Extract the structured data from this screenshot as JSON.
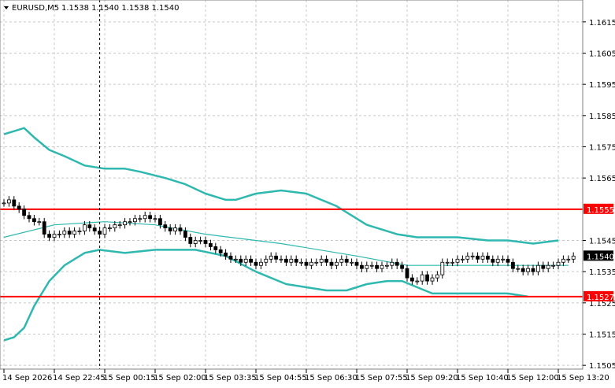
{
  "header": {
    "dropdown_icon": "triangle-down-icon",
    "symbol": "EURUSD,M5",
    "ohlc": "1.1538 1.1540 1.1538 1.1540"
  },
  "colors": {
    "grid": "#c8c8c8",
    "band": "#2fb8b0",
    "ma": "#2fb8b0",
    "candle": "#000000",
    "level": "#ff0000",
    "level_label_text": "#ffffff",
    "price_tag_bg": "#000000",
    "price_tag_text": "#ffffff",
    "crosshair": "#000000"
  },
  "chart_data": {
    "type": "candlestick",
    "symbol": "EURUSD",
    "timeframe": "M5",
    "ylim": [
      1.15,
      1.162
    ],
    "y_ticks": [
      "1.1615",
      "1.1605",
      "1.1595",
      "1.1585",
      "1.1575",
      "1.1565",
      "1.1545",
      "1.1535",
      "1.1525",
      "1.1515",
      "1.1505"
    ],
    "x_ticks": [
      "14 Sep 2026",
      "14 Sep 22:45",
      "15 Sep 00:15",
      "15 Sep 02:00",
      "15 Sep 03:35",
      "15 Sep 04:55",
      "15 Sep 06:30",
      "15 Sep 07:55",
      "15 Sep 09:20",
      "15 Sep 10:40",
      "15 Sep 12:00",
      "15 Sep 13:20"
    ],
    "x_tick_index": [
      0,
      10,
      20,
      30,
      40,
      50,
      60,
      70,
      80,
      90,
      100,
      110
    ],
    "levels": [
      {
        "price": 1.1555,
        "label": "1.1555"
      },
      {
        "price": 1.1527,
        "label": "1.1527"
      }
    ],
    "current_price": {
      "price": 1.154,
      "label": "1.1540"
    },
    "crosshair_index": 19,
    "closes": [
      1.1557,
      1.1558,
      1.1556,
      1.1555,
      1.1553,
      1.1552,
      1.1551,
      1.1551,
      1.1547,
      1.1546,
      1.1547,
      1.1547,
      1.1548,
      1.1547,
      1.1548,
      1.1548,
      1.155,
      1.1549,
      1.1548,
      1.1547,
      1.1549,
      1.1549,
      1.155,
      1.155,
      1.1551,
      1.1551,
      1.1552,
      1.1552,
      1.1553,
      1.1552,
      1.1552,
      1.155,
      1.1549,
      1.1548,
      1.1549,
      1.1548,
      1.1546,
      1.1544,
      1.1545,
      1.1545,
      1.1544,
      1.1543,
      1.1542,
      1.1541,
      1.154,
      1.1539,
      1.1539,
      1.1538,
      1.1539,
      1.1538,
      1.1537,
      1.1538,
      1.1539,
      1.154,
      1.1539,
      1.1539,
      1.1538,
      1.1539,
      1.1538,
      1.1538,
      1.1537,
      1.1538,
      1.1538,
      1.1539,
      1.1538,
      1.1537,
      1.1538,
      1.1539,
      1.1538,
      1.1538,
      1.1537,
      1.1536,
      1.1537,
      1.1537,
      1.1536,
      1.1537,
      1.1537,
      1.1538,
      1.1537,
      1.1536,
      1.1533,
      1.1532,
      1.1532,
      1.1534,
      1.1532,
      1.1533,
      1.1534,
      1.1538,
      1.1538,
      1.1538,
      1.1539,
      1.1539,
      1.154,
      1.154,
      1.1539,
      1.154,
      1.1539,
      1.1538,
      1.1539,
      1.1539,
      1.1538,
      1.1536,
      1.1536,
      1.1535,
      1.1536,
      1.1535,
      1.1537,
      1.1536,
      1.1537,
      1.1537,
      1.1538,
      1.1539,
      1.1539,
      1.154
    ],
    "ma": [
      [
        0,
        1.1546
      ],
      [
        10,
        1.155
      ],
      [
        20,
        1.1551
      ],
      [
        30,
        1.155
      ],
      [
        40,
        1.1547
      ],
      [
        55,
        1.1544
      ],
      [
        70,
        1.154
      ],
      [
        80,
        1.1537
      ],
      [
        90,
        1.1537
      ],
      [
        100,
        1.1537
      ],
      [
        112,
        1.1537
      ]
    ],
    "upper_band": [
      [
        0,
        1.1579
      ],
      [
        2,
        1.158
      ],
      [
        4,
        1.1581
      ],
      [
        6,
        1.1578
      ],
      [
        9,
        1.1574
      ],
      [
        12,
        1.1572
      ],
      [
        16,
        1.1569
      ],
      [
        20,
        1.1568
      ],
      [
        24,
        1.1568
      ],
      [
        27,
        1.1567
      ],
      [
        32,
        1.1565
      ],
      [
        36,
        1.1563
      ],
      [
        40,
        1.156
      ],
      [
        44,
        1.1558
      ],
      [
        46,
        1.1558
      ],
      [
        50,
        1.156
      ],
      [
        55,
        1.1561
      ],
      [
        60,
        1.156
      ],
      [
        66,
        1.1556
      ],
      [
        72,
        1.155
      ],
      [
        78,
        1.1547
      ],
      [
        82,
        1.1546
      ],
      [
        90,
        1.1546
      ],
      [
        96,
        1.1545
      ],
      [
        100,
        1.1545
      ],
      [
        105,
        1.1544
      ],
      [
        110,
        1.1545
      ]
    ],
    "lower_band": [
      [
        0,
        1.1513
      ],
      [
        2,
        1.1514
      ],
      [
        4,
        1.1517
      ],
      [
        6,
        1.1524
      ],
      [
        9,
        1.1532
      ],
      [
        12,
        1.1537
      ],
      [
        16,
        1.1541
      ],
      [
        19,
        1.1542
      ],
      [
        24,
        1.1541
      ],
      [
        30,
        1.1542
      ],
      [
        38,
        1.1542
      ],
      [
        44,
        1.154
      ],
      [
        50,
        1.1535
      ],
      [
        56,
        1.1531
      ],
      [
        60,
        1.153
      ],
      [
        64,
        1.1529
      ],
      [
        68,
        1.1529
      ],
      [
        72,
        1.1531
      ],
      [
        76,
        1.1532
      ],
      [
        79,
        1.1532
      ],
      [
        82,
        1.153
      ],
      [
        85,
        1.1528
      ],
      [
        90,
        1.1528
      ],
      [
        95,
        1.1528
      ],
      [
        100,
        1.1528
      ],
      [
        104,
        1.1527
      ]
    ]
  }
}
